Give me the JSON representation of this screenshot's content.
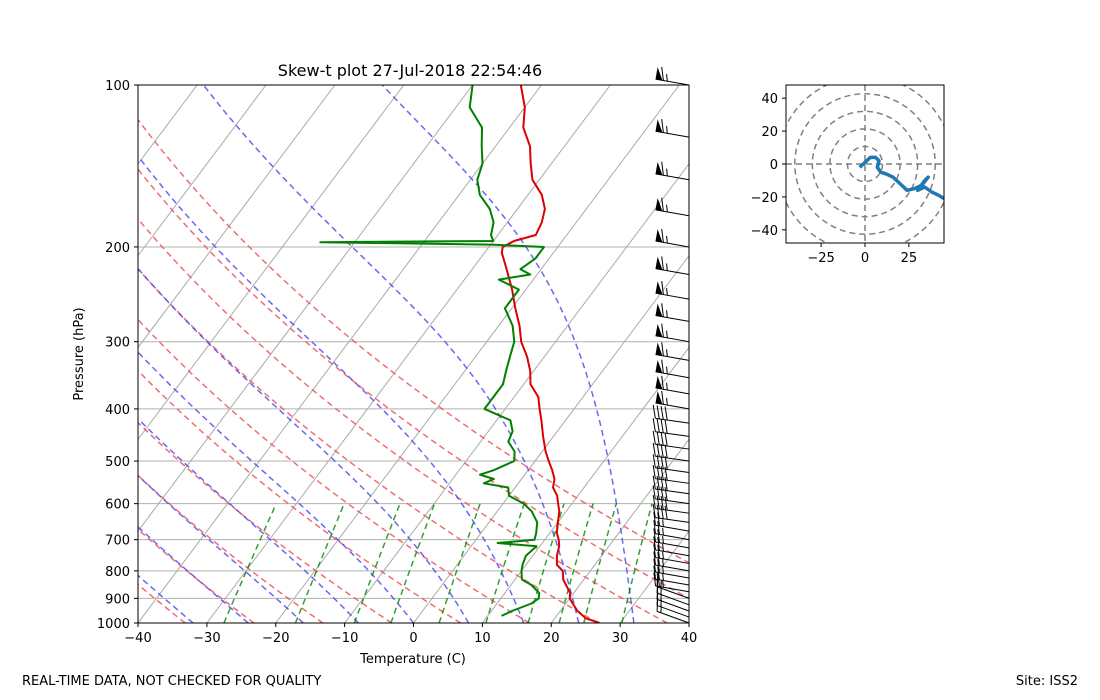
{
  "title": "Skew-t plot 27-Jul-2018 22:54:46",
  "footer": {
    "left": "REAL-TIME DATA, NOT CHECKED FOR QUALITY",
    "right": "Site: ISS2"
  },
  "colors": {
    "temperature": "#dd0000",
    "dewpoint": "#008000",
    "dry_adiabat": "#ee5555",
    "moist_adiabat": "#4444ee",
    "mixing_ratio": "#008800",
    "isotherm": "#999999",
    "hodograph": "#1f77b4"
  },
  "chart_data": [
    {
      "type": "line",
      "name": "skew-t",
      "title": "Skew-t plot 27-Jul-2018 22:54:46",
      "xlabel": "Temperature (C)",
      "ylabel": "Pressure (hPa)",
      "xlim": [
        -40,
        40
      ],
      "ylim": [
        1000,
        100
      ],
      "x_ticks": [
        "−40",
        "−30",
        "−20",
        "−10",
        "0",
        "10",
        "20",
        "30",
        "40"
      ],
      "y_ticks": [
        "100",
        "200",
        "300",
        "400",
        "500",
        "600",
        "700",
        "800",
        "900",
        "1000"
      ],
      "y_scale": "log",
      "skew": "isotherms slant right",
      "grid": true,
      "series": [
        {
          "name": "temperature",
          "color": "red",
          "points": [
            [
              1000,
              27
            ],
            [
              980,
              24.5
            ],
            [
              950,
              22.5
            ],
            [
              920,
              21
            ],
            [
              900,
              20
            ],
            [
              880,
              19.5
            ],
            [
              850,
              18
            ],
            [
              830,
              17
            ],
            [
              800,
              16
            ],
            [
              780,
              14.5
            ],
            [
              750,
              13.5
            ],
            [
              720,
              12.8
            ],
            [
              700,
              12
            ],
            [
              680,
              11
            ],
            [
              650,
              10
            ],
            [
              620,
              9
            ],
            [
              600,
              8
            ],
            [
              580,
              7
            ],
            [
              560,
              5.5
            ],
            [
              540,
              4.8
            ],
            [
              520,
              3.5
            ],
            [
              500,
              2
            ],
            [
              480,
              0.5
            ],
            [
              450,
              -1.5
            ],
            [
              420,
              -3.5
            ],
            [
              400,
              -5
            ],
            [
              380,
              -6.5
            ],
            [
              360,
              -9
            ],
            [
              340,
              -10.5
            ],
            [
              320,
              -12.5
            ],
            [
              300,
              -15
            ],
            [
              280,
              -17
            ],
            [
              260,
              -19.5
            ],
            [
              240,
              -22
            ],
            [
              220,
              -25
            ],
            [
              205,
              -27.5
            ],
            [
              200,
              -28
            ],
            [
              195,
              -27
            ],
            [
              190,
              -24.5
            ],
            [
              180,
              -25
            ],
            [
              170,
              -26
            ],
            [
              160,
              -28
            ],
            [
              150,
              -31
            ],
            [
              140,
              -33
            ],
            [
              130,
              -35
            ],
            [
              120,
              -38
            ],
            [
              110,
              -40
            ],
            [
              100,
              -43
            ]
          ]
        },
        {
          "name": "dewpoint",
          "color": "green",
          "points": [
            [
              970,
              12
            ],
            [
              950,
              13
            ],
            [
              920,
              15
            ],
            [
              900,
              15.5
            ],
            [
              880,
              15
            ],
            [
              850,
              13
            ],
            [
              830,
              11
            ],
            [
              800,
              10
            ],
            [
              780,
              9.5
            ],
            [
              750,
              9
            ],
            [
              720,
              9.5
            ],
            [
              710,
              3.5
            ],
            [
              700,
              8.5
            ],
            [
              680,
              8
            ],
            [
              650,
              7
            ],
            [
              620,
              5
            ],
            [
              600,
              3
            ],
            [
              580,
              0
            ],
            [
              560,
              -1
            ],
            [
              550,
              -5
            ],
            [
              540,
              -4
            ],
            [
              530,
              -6.5
            ],
            [
              520,
              -5
            ],
            [
              500,
              -3
            ],
            [
              480,
              -4
            ],
            [
              460,
              -6
            ],
            [
              440,
              -6.5
            ],
            [
              420,
              -8
            ],
            [
              400,
              -13
            ],
            [
              380,
              -13
            ],
            [
              360,
              -13
            ],
            [
              340,
              -14
            ],
            [
              320,
              -15
            ],
            [
              300,
              -16
            ],
            [
              280,
              -18
            ],
            [
              260,
              -21
            ],
            [
              240,
              -21
            ],
            [
              230,
              -25
            ],
            [
              225,
              -21
            ],
            [
              220,
              -23
            ],
            [
              210,
              -22
            ],
            [
              200,
              -22
            ],
            [
              198,
              -30
            ],
            [
              196,
              -55
            ],
            [
              195,
              -30
            ],
            [
              190,
              -31
            ],
            [
              180,
              -32
            ],
            [
              170,
              -34
            ],
            [
              160,
              -37
            ],
            [
              150,
              -39
            ],
            [
              140,
              -40
            ],
            [
              130,
              -42
            ],
            [
              120,
              -44
            ],
            [
              110,
              -48
            ],
            [
              100,
              -50
            ]
          ]
        }
      ],
      "reference_lines": {
        "dry_adiabats_potential_temperature_K": [
          240,
          250,
          260,
          270,
          280,
          290,
          300,
          310,
          320,
          330
        ],
        "moist_adiabats_start_temperature_C": [
          -40,
          -32,
          -24,
          -16,
          -8,
          0,
          8,
          16,
          24,
          32
        ],
        "mixing_ratio_lines_g_per_kg": [
          0.4,
          1,
          2,
          3,
          5,
          8,
          12,
          16,
          20,
          28
        ]
      },
      "wind_barbs": "column of wind barbs along the right edge from 1000 to 100 hPa"
    },
    {
      "type": "line",
      "name": "hodograph",
      "xlim": [
        -45,
        45
      ],
      "ylim": [
        -48,
        48
      ],
      "x_ticks": [
        "−25",
        "0",
        "25"
      ],
      "y_ticks": [
        "−40",
        "−20",
        "0",
        "20",
        "40"
      ],
      "rings": [
        10,
        20,
        30,
        40,
        50
      ],
      "trace": [
        [
          -3,
          -2
        ],
        [
          -1,
          0
        ],
        [
          1,
          2
        ],
        [
          3,
          4
        ],
        [
          6,
          4
        ],
        [
          8,
          2
        ],
        [
          7,
          -2
        ],
        [
          9,
          -5
        ],
        [
          12,
          -6
        ],
        [
          16,
          -8
        ],
        [
          19,
          -11
        ],
        [
          22,
          -14
        ],
        [
          24,
          -16
        ],
        [
          28,
          -15
        ],
        [
          32,
          -13
        ],
        [
          34,
          -10
        ],
        [
          36,
          -8
        ],
        [
          33,
          -12
        ],
        [
          30,
          -16
        ],
        [
          34,
          -14
        ],
        [
          38,
          -17
        ],
        [
          42,
          -19
        ],
        [
          45,
          -21
        ]
      ]
    }
  ]
}
